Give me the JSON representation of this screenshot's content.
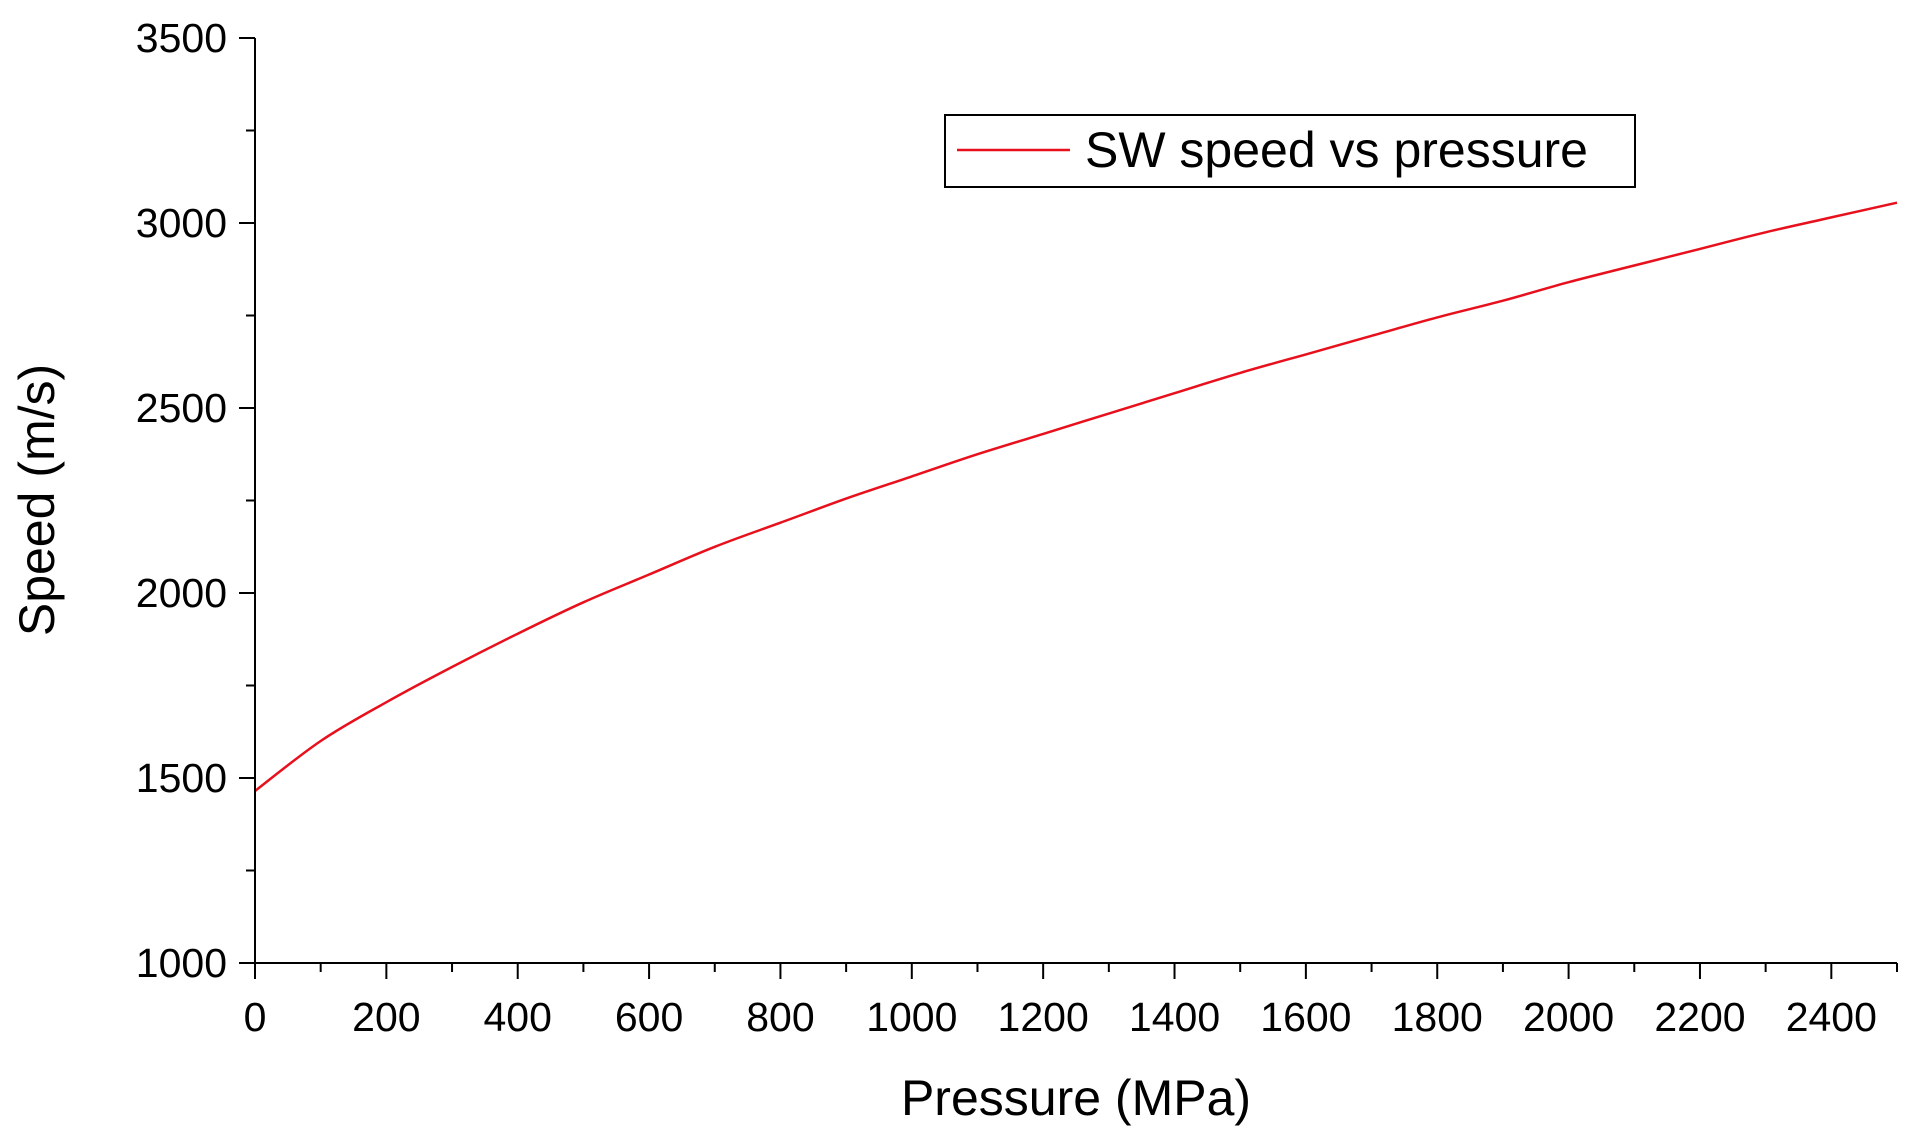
{
  "chart_data": {
    "type": "line",
    "title": "",
    "xlabel": "Pressure (MPa)",
    "ylabel": "Speed (m/s)",
    "xlim": [
      0,
      2500
    ],
    "ylim": [
      1000,
      3500
    ],
    "x_major_ticks": [
      0,
      200,
      400,
      600,
      800,
      1000,
      1200,
      1400,
      1600,
      1800,
      2000,
      2200,
      2400
    ],
    "x_minor_step": 100,
    "y_major_ticks": [
      1000,
      1500,
      2000,
      2500,
      3000,
      3500
    ],
    "y_minor_step": 250,
    "grid": false,
    "legend_position": "top-right",
    "series": [
      {
        "name": "SW speed vs pressure",
        "color": "#e8101c",
        "x": [
          0,
          100,
          200,
          300,
          400,
          500,
          600,
          700,
          800,
          900,
          1000,
          1100,
          1200,
          1300,
          1400,
          1500,
          1600,
          1700,
          1800,
          1900,
          2000,
          2100,
          2200,
          2300,
          2400,
          2500
        ],
        "y": [
          1465,
          1600,
          1705,
          1800,
          1890,
          1975,
          2050,
          2125,
          2190,
          2255,
          2315,
          2375,
          2430,
          2485,
          2540,
          2595,
          2645,
          2695,
          2745,
          2790,
          2840,
          2885,
          2930,
          2975,
          3015,
          3055
        ]
      }
    ]
  }
}
